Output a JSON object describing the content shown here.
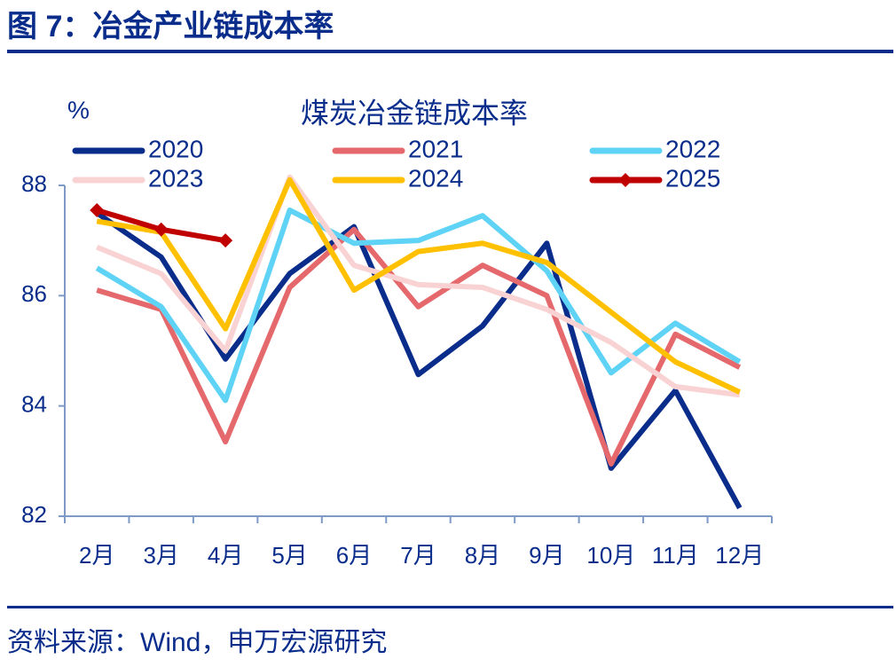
{
  "header": {
    "title": "图 7：冶金产业链成本率"
  },
  "chart_data": {
    "type": "line",
    "title": "煤炭冶金链成本率",
    "y_label": "%",
    "categories": [
      "2月",
      "3月",
      "4月",
      "5月",
      "6月",
      "7月",
      "8月",
      "9月",
      "10月",
      "11月",
      "12月"
    ],
    "series": [
      {
        "name": "2020",
        "color": "#0a2d8c",
        "values": [
          87.5,
          86.7,
          84.85,
          86.4,
          87.25,
          84.57,
          85.45,
          86.95,
          82.87,
          84.28,
          82.15
        ]
      },
      {
        "name": "2021",
        "color": "#e5696c",
        "values": [
          86.1,
          85.75,
          83.35,
          86.15,
          87.2,
          85.8,
          86.55,
          86.0,
          82.95,
          85.3,
          84.7
        ]
      },
      {
        "name": "2022",
        "color": "#5fd3f5",
        "values": [
          86.5,
          85.8,
          84.1,
          87.55,
          86.95,
          87.0,
          87.45,
          86.45,
          84.6,
          85.5,
          84.8
        ]
      },
      {
        "name": "2023",
        "color": "#f9d3d3",
        "values": [
          86.88,
          86.4,
          85.0,
          88.15,
          86.55,
          86.2,
          86.15,
          85.75,
          85.15,
          84.35,
          84.2
        ]
      },
      {
        "name": "2024",
        "color": "#ffc000",
        "values": [
          87.35,
          87.15,
          85.4,
          88.1,
          86.1,
          86.8,
          86.95,
          86.6,
          85.7,
          84.8,
          84.25
        ]
      },
      {
        "name": "2025",
        "color": "#c00000",
        "marker": "diamond",
        "values": [
          87.55,
          87.2,
          87.0,
          null,
          null,
          null,
          null,
          null,
          null,
          null,
          null
        ]
      }
    ],
    "ylim": [
      82,
      88
    ],
    "yticks": [
      82,
      84,
      86,
      88
    ]
  },
  "footer": {
    "source": "资料来源：Wind，申万宏源研究"
  }
}
